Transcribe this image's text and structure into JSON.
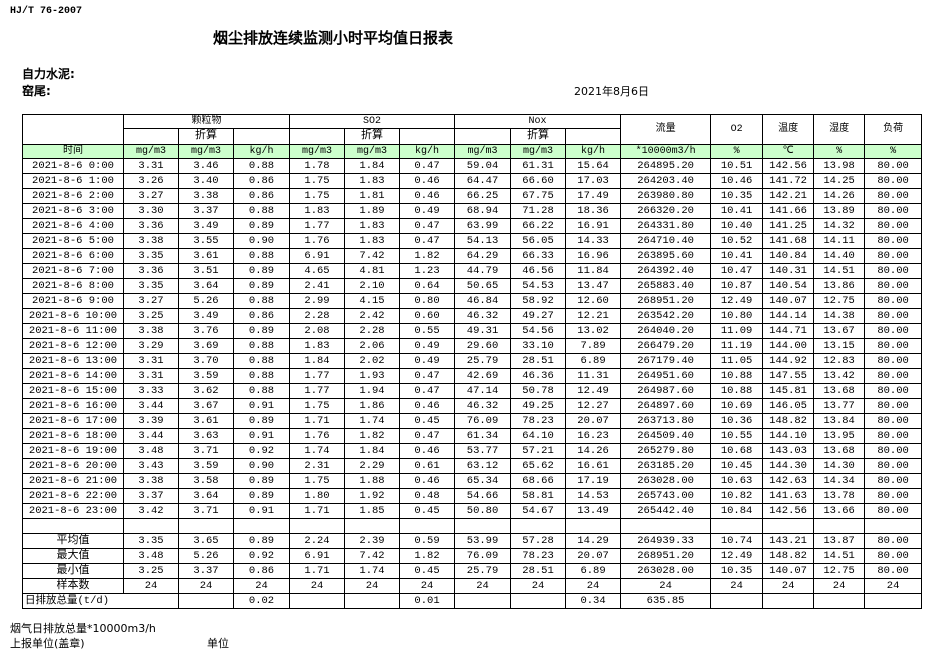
{
  "header": {
    "standard": "HJ/T  76-2007",
    "title": "烟尘排放连续监测小时平均值日报表",
    "company": "自力水泥:",
    "kiln": "窑尾:",
    "date": "2021年8月6日"
  },
  "table": {
    "groups": {
      "particulate": "颗粒物",
      "so2": "SO2",
      "nox": "Nox",
      "flow": "流量",
      "o2": "O2",
      "temp": "温度",
      "humidity": "湿度",
      "load": "负荷"
    },
    "converted_label": "折算",
    "units": [
      "时间",
      "mg/m3",
      "mg/m3",
      "kg/h",
      "mg/m3",
      "mg/m3",
      "kg/h",
      "mg/m3",
      "mg/m3",
      "kg/h",
      "*10000m3/h",
      "%",
      "℃",
      "%",
      "%"
    ],
    "header_bg": "#ccffcc",
    "rows": [
      [
        "2021-8-6 0:00",
        "3.31",
        "3.46",
        "0.88",
        "1.78",
        "1.84",
        "0.47",
        "59.04",
        "61.31",
        "15.64",
        "264895.20",
        "10.51",
        "142.56",
        "13.98",
        "80.00"
      ],
      [
        "2021-8-6 1:00",
        "3.26",
        "3.40",
        "0.86",
        "1.75",
        "1.83",
        "0.46",
        "64.47",
        "66.60",
        "17.03",
        "264203.40",
        "10.46",
        "141.72",
        "14.25",
        "80.00"
      ],
      [
        "2021-8-6 2:00",
        "3.27",
        "3.38",
        "0.86",
        "1.75",
        "1.81",
        "0.46",
        "66.25",
        "67.75",
        "17.49",
        "263980.80",
        "10.35",
        "142.21",
        "14.26",
        "80.00"
      ],
      [
        "2021-8-6 3:00",
        "3.30",
        "3.37",
        "0.88",
        "1.83",
        "1.89",
        "0.49",
        "68.94",
        "71.28",
        "18.36",
        "266320.20",
        "10.41",
        "141.66",
        "13.89",
        "80.00"
      ],
      [
        "2021-8-6 4:00",
        "3.36",
        "3.49",
        "0.89",
        "1.77",
        "1.83",
        "0.47",
        "63.99",
        "66.22",
        "16.91",
        "264331.80",
        "10.40",
        "141.25",
        "14.32",
        "80.00"
      ],
      [
        "2021-8-6 5:00",
        "3.38",
        "3.55",
        "0.90",
        "1.76",
        "1.83",
        "0.47",
        "54.13",
        "56.05",
        "14.33",
        "264710.40",
        "10.52",
        "141.68",
        "14.11",
        "80.00"
      ],
      [
        "2021-8-6 6:00",
        "3.35",
        "3.61",
        "0.88",
        "6.91",
        "7.42",
        "1.82",
        "64.29",
        "66.33",
        "16.96",
        "263895.60",
        "10.41",
        "140.84",
        "14.40",
        "80.00"
      ],
      [
        "2021-8-6 7:00",
        "3.36",
        "3.51",
        "0.89",
        "4.65",
        "4.81",
        "1.23",
        "44.79",
        "46.56",
        "11.84",
        "264392.40",
        "10.47",
        "140.31",
        "14.51",
        "80.00"
      ],
      [
        "2021-8-6 8:00",
        "3.35",
        "3.64",
        "0.89",
        "2.41",
        "2.10",
        "0.64",
        "50.65",
        "54.53",
        "13.47",
        "265883.40",
        "10.87",
        "140.54",
        "13.86",
        "80.00"
      ],
      [
        "2021-8-6 9:00",
        "3.27",
        "5.26",
        "0.88",
        "2.99",
        "4.15",
        "0.80",
        "46.84",
        "58.92",
        "12.60",
        "268951.20",
        "12.49",
        "140.07",
        "12.75",
        "80.00"
      ],
      [
        "2021-8-6 10:00",
        "3.25",
        "3.49",
        "0.86",
        "2.28",
        "2.42",
        "0.60",
        "46.32",
        "49.27",
        "12.21",
        "263542.20",
        "10.80",
        "144.14",
        "14.38",
        "80.00"
      ],
      [
        "2021-8-6 11:00",
        "3.38",
        "3.76",
        "0.89",
        "2.08",
        "2.28",
        "0.55",
        "49.31",
        "54.56",
        "13.02",
        "264040.20",
        "11.09",
        "144.71",
        "13.67",
        "80.00"
      ],
      [
        "2021-8-6 12:00",
        "3.29",
        "3.69",
        "0.88",
        "1.83",
        "2.06",
        "0.49",
        "29.60",
        "33.10",
        "7.89",
        "266479.20",
        "11.19",
        "144.00",
        "13.15",
        "80.00"
      ],
      [
        "2021-8-6 13:00",
        "3.31",
        "3.70",
        "0.88",
        "1.84",
        "2.02",
        "0.49",
        "25.79",
        "28.51",
        "6.89",
        "267179.40",
        "11.05",
        "144.92",
        "12.83",
        "80.00"
      ],
      [
        "2021-8-6 14:00",
        "3.31",
        "3.59",
        "0.88",
        "1.77",
        "1.93",
        "0.47",
        "42.69",
        "46.36",
        "11.31",
        "264951.60",
        "10.88",
        "147.55",
        "13.42",
        "80.00"
      ],
      [
        "2021-8-6 15:00",
        "3.33",
        "3.62",
        "0.88",
        "1.77",
        "1.94",
        "0.47",
        "47.14",
        "50.78",
        "12.49",
        "264987.60",
        "10.88",
        "145.81",
        "13.68",
        "80.00"
      ],
      [
        "2021-8-6 16:00",
        "3.44",
        "3.67",
        "0.91",
        "1.75",
        "1.86",
        "0.46",
        "46.32",
        "49.25",
        "12.27",
        "264897.60",
        "10.69",
        "146.05",
        "13.77",
        "80.00"
      ],
      [
        "2021-8-6 17:00",
        "3.39",
        "3.61",
        "0.89",
        "1.71",
        "1.74",
        "0.45",
        "76.09",
        "78.23",
        "20.07",
        "263713.80",
        "10.36",
        "148.82",
        "13.84",
        "80.00"
      ],
      [
        "2021-8-6 18:00",
        "3.44",
        "3.63",
        "0.91",
        "1.76",
        "1.82",
        "0.47",
        "61.34",
        "64.10",
        "16.23",
        "264509.40",
        "10.55",
        "144.10",
        "13.95",
        "80.00"
      ],
      [
        "2021-8-6 19:00",
        "3.48",
        "3.71",
        "0.92",
        "1.74",
        "1.84",
        "0.46",
        "53.77",
        "57.21",
        "14.26",
        "265279.80",
        "10.68",
        "143.03",
        "13.68",
        "80.00"
      ],
      [
        "2021-8-6 20:00",
        "3.43",
        "3.59",
        "0.90",
        "2.31",
        "2.29",
        "0.61",
        "63.12",
        "65.62",
        "16.61",
        "263185.20",
        "10.45",
        "144.30",
        "14.30",
        "80.00"
      ],
      [
        "2021-8-6 21:00",
        "3.38",
        "3.58",
        "0.89",
        "1.75",
        "1.88",
        "0.46",
        "65.34",
        "68.66",
        "17.19",
        "263028.00",
        "10.63",
        "142.63",
        "14.34",
        "80.00"
      ],
      [
        "2021-8-6 22:00",
        "3.37",
        "3.64",
        "0.89",
        "1.80",
        "1.92",
        "0.48",
        "54.66",
        "58.81",
        "14.53",
        "265743.00",
        "10.82",
        "141.63",
        "13.78",
        "80.00"
      ],
      [
        "2021-8-6 23:00",
        "3.42",
        "3.71",
        "0.91",
        "1.71",
        "1.85",
        "0.45",
        "50.80",
        "54.67",
        "13.49",
        "265442.40",
        "10.84",
        "142.56",
        "13.66",
        "80.00"
      ]
    ],
    "stats": [
      [
        "平均值",
        "3.35",
        "3.65",
        "0.89",
        "2.24",
        "2.39",
        "0.59",
        "53.99",
        "57.28",
        "14.29",
        "264939.33",
        "10.74",
        "143.21",
        "13.87",
        "80.00"
      ],
      [
        "最大值",
        "3.48",
        "5.26",
        "0.92",
        "6.91",
        "7.42",
        "1.82",
        "76.09",
        "78.23",
        "20.07",
        "268951.20",
        "12.49",
        "148.82",
        "14.51",
        "80.00"
      ],
      [
        "最小值",
        "3.25",
        "3.37",
        "0.86",
        "1.71",
        "1.74",
        "0.45",
        "25.79",
        "28.51",
        "6.89",
        "263028.00",
        "10.35",
        "140.07",
        "12.75",
        "80.00"
      ],
      [
        "样本数",
        "24",
        "24",
        "24",
        "24",
        "24",
        "24",
        "24",
        "24",
        "24",
        "24",
        "24",
        "24",
        "24",
        "24"
      ]
    ],
    "daily_total": {
      "label": "日排放总量(t/d)",
      "values": [
        "",
        "0.02",
        "",
        "",
        "0.01",
        "",
        "",
        "0.34",
        "635.85",
        "",
        "",
        "",
        ""
      ]
    }
  },
  "footer": {
    "flue_gas_total": "烟气日排放总量*10000m3/h",
    "reporting_unit": "上报单位(盖章)",
    "unit": "单位"
  }
}
